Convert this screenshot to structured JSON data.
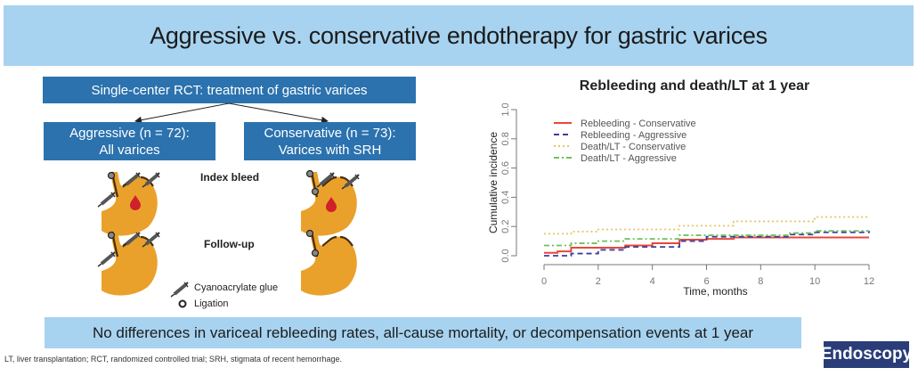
{
  "title": "Aggressive vs. conservative endotherapy for gastric varices",
  "flow": {
    "top": "Single-center RCT: treatment of gastric varices",
    "left_line1": "Aggressive (n = 72):",
    "left_line2": "All varices",
    "right_line1": "Conservative (n = 73):",
    "right_line2": "Varices with SRH"
  },
  "labels": {
    "index_bleed": "Index bleed",
    "follow_up": "Follow-up"
  },
  "legend": {
    "glue": "Cyanoacrylate glue",
    "ligation": "Ligation"
  },
  "colors": {
    "title_bg": "#a7d3f0",
    "box_bg": "#2b72ae",
    "stomach": "#e9a12b",
    "blood": "#d0202a",
    "brand_bg": "#2a3d78"
  },
  "conclusion": "No differences in variceal rebleeding rates, all-cause mortality, or decompensation events at 1 year",
  "footnote": "LT, liver transplantation; RCT, randomized controlled trial; SRH, stigmata of recent hemorrhage.",
  "brand": "Endoscopy",
  "chart_data": {
    "type": "line",
    "title": "Rebleeding and death/LT at 1 year",
    "xlabel": "Time, months",
    "ylabel": "Cumulative incidence",
    "xlim": [
      0,
      12
    ],
    "ylim": [
      0,
      1.0
    ],
    "xticks": [
      0,
      2,
      4,
      6,
      8,
      10,
      12
    ],
    "yticks": [
      "0.0",
      "0.2",
      "0.4",
      "0.6",
      "0.8",
      "1.0"
    ],
    "legend_position": "top-left",
    "series": [
      {
        "name": "Rebleeding - Conservative",
        "color": "#e8483a",
        "dash": "solid",
        "steps": [
          [
            0,
            0.02
          ],
          [
            0.5,
            0.03
          ],
          [
            1,
            0.055
          ],
          [
            3,
            0.07
          ],
          [
            4,
            0.085
          ],
          [
            5,
            0.11
          ],
          [
            6,
            0.115
          ],
          [
            7,
            0.125
          ],
          [
            12,
            0.125
          ]
        ]
      },
      {
        "name": "Rebleeding - Aggressive",
        "color": "#3b3fa0",
        "dash": "dashed",
        "steps": [
          [
            0,
            0.0
          ],
          [
            1,
            0.015
          ],
          [
            2,
            0.04
          ],
          [
            3,
            0.06
          ],
          [
            5,
            0.1
          ],
          [
            6,
            0.13
          ],
          [
            9,
            0.145
          ],
          [
            10,
            0.16
          ],
          [
            12,
            0.17
          ]
        ]
      },
      {
        "name": "Death/LT - Conservative",
        "color": "#e8c66a",
        "dash": "dotted",
        "steps": [
          [
            0,
            0.15
          ],
          [
            1,
            0.165
          ],
          [
            2,
            0.18
          ],
          [
            5,
            0.205
          ],
          [
            7,
            0.235
          ],
          [
            10,
            0.265
          ],
          [
            12,
            0.265
          ]
        ]
      },
      {
        "name": "Death/LT - Aggressive",
        "color": "#6cc25a",
        "dash": "dashdot",
        "steps": [
          [
            0,
            0.07
          ],
          [
            1,
            0.085
          ],
          [
            2,
            0.1
          ],
          [
            3,
            0.115
          ],
          [
            5,
            0.14
          ],
          [
            9,
            0.155
          ],
          [
            10,
            0.17
          ],
          [
            12,
            0.17
          ]
        ]
      }
    ]
  }
}
